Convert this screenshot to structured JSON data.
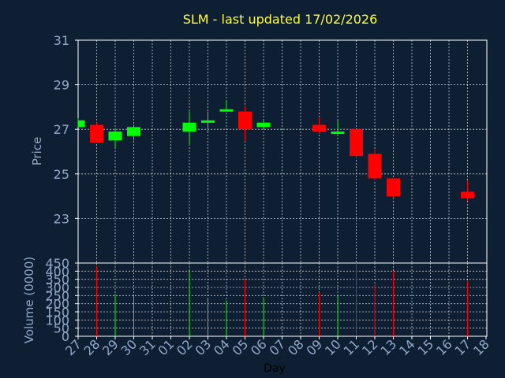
{
  "chart_data": [
    {
      "type": "candlestick",
      "title": "SLM - last updated 17/02/2026",
      "ylabel": "Price",
      "ylim": [
        21,
        31
      ],
      "yticks": [
        23,
        25,
        27,
        29,
        31
      ],
      "grid": true,
      "categories": [
        "27",
        "28",
        "29",
        "30",
        "31",
        "01",
        "02",
        "03",
        "04",
        "05",
        "06",
        "07",
        "08",
        "09",
        "10",
        "11",
        "12",
        "13",
        "14",
        "15",
        "16",
        "17",
        "18"
      ],
      "candles": [
        {
          "x": "27",
          "open": 27.1,
          "close": 27.4,
          "high": 27.5,
          "low": 27.1
        },
        {
          "x": "28",
          "open": 27.2,
          "close": 26.4,
          "high": 27.3,
          "low": 26.4
        },
        {
          "x": "29",
          "open": 26.5,
          "close": 26.9,
          "high": 27.0,
          "low": 26.2
        },
        {
          "x": "30",
          "open": 26.7,
          "close": 27.1,
          "high": 27.2,
          "low": 26.5
        },
        {
          "x": "02",
          "open": 26.9,
          "close": 27.3,
          "high": 27.8,
          "low": 26.3
        },
        {
          "x": "03",
          "open": 27.3,
          "close": 27.4,
          "high": 27.8,
          "low": 26.9
        },
        {
          "x": "04",
          "open": 27.8,
          "close": 27.9,
          "high": 28.3,
          "low": 27.8
        },
        {
          "x": "05",
          "open": 27.8,
          "close": 27.0,
          "high": 28.0,
          "low": 26.5
        },
        {
          "x": "06",
          "open": 27.1,
          "close": 27.3,
          "high": 27.4,
          "low": 27.0
        },
        {
          "x": "09",
          "open": 27.2,
          "close": 26.9,
          "high": 27.5,
          "low": 26.8
        },
        {
          "x": "10",
          "open": 26.8,
          "close": 26.9,
          "high": 27.4,
          "low": 26.7
        },
        {
          "x": "11",
          "open": 27.0,
          "close": 25.8,
          "high": 27.0,
          "low": 25.7
        },
        {
          "x": "12",
          "open": 25.9,
          "close": 24.8,
          "high": 26.1,
          "low": 24.7
        },
        {
          "x": "13",
          "open": 24.8,
          "close": 24.0,
          "high": 24.8,
          "low": 23.9
        },
        {
          "x": "17",
          "open": 24.2,
          "close": 23.9,
          "high": 24.7,
          "low": 23.8
        }
      ],
      "colors": {
        "up": "#00ff00",
        "down": "#ff0000",
        "background": "#0f1f33",
        "title": "#ffff33",
        "axis_text": "#8fa8c8"
      }
    },
    {
      "type": "bar",
      "ylabel": "Volume (0000)",
      "xlabel": "Day",
      "ylim": [
        0,
        450
      ],
      "yticks": [
        0,
        50,
        100,
        150,
        200,
        250,
        300,
        350,
        400,
        450
      ],
      "grid": true,
      "categories": [
        "27",
        "28",
        "29",
        "30",
        "31",
        "01",
        "02",
        "03",
        "04",
        "05",
        "06",
        "07",
        "08",
        "09",
        "10",
        "11",
        "12",
        "13",
        "14",
        "15",
        "16",
        "17",
        "18"
      ],
      "bars": [
        {
          "x": "28",
          "value": 430,
          "dir": "down"
        },
        {
          "x": "29",
          "value": 260,
          "dir": "up"
        },
        {
          "x": "30",
          "value": 250,
          "dir": "up"
        },
        {
          "x": "02",
          "value": 400,
          "dir": "up"
        },
        {
          "x": "03",
          "value": 230,
          "dir": "up"
        },
        {
          "x": "04",
          "value": 220,
          "dir": "up"
        },
        {
          "x": "05",
          "value": 350,
          "dir": "down"
        },
        {
          "x": "06",
          "value": 240,
          "dir": "up"
        },
        {
          "x": "09",
          "value": 270,
          "dir": "down"
        },
        {
          "x": "10",
          "value": 250,
          "dir": "up"
        },
        {
          "x": "11",
          "value": 450,
          "dir": "down"
        },
        {
          "x": "12",
          "value": 320,
          "dir": "down"
        },
        {
          "x": "13",
          "value": 400,
          "dir": "down"
        },
        {
          "x": "17",
          "value": 340,
          "dir": "down"
        }
      ]
    }
  ]
}
